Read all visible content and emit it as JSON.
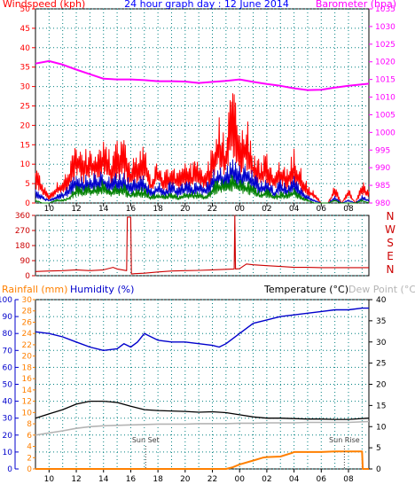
{
  "colors": {
    "wind_speed": "#ff0000",
    "wind_avg": "#0000cc",
    "wind_low": "#008000",
    "barometer": "#ff00ff",
    "wind_dir": "#cc0000",
    "humidity": "#0000cc",
    "temperature": "#000000",
    "dew_point": "#b4b4b4",
    "rainfall": "#ff8000",
    "left_axis": "#0000cc",
    "grid": "#008080",
    "title": "#0000ff"
  },
  "chart_data": [
    {
      "type": "line",
      "title": "24 hour graph day : 12 June 2014",
      "ylabel_left": "Windspeed (kph)",
      "ylabel_right": "Barometer (hpa)",
      "x_tick_labels": [
        "10",
        "12",
        "14",
        "16",
        "18",
        "20",
        "22",
        "00",
        "02",
        "04",
        "06",
        "08"
      ],
      "ylim_left": [
        0,
        50
      ],
      "yticks_left": [
        0,
        5,
        10,
        15,
        20,
        25,
        30,
        35,
        40,
        45,
        50
      ],
      "ylim_right": [
        980,
        1035
      ],
      "yticks_right": [
        980,
        985,
        990,
        995,
        1000,
        1005,
        1010,
        1015,
        1020,
        1025,
        1030,
        1035
      ],
      "grid": true,
      "series": [
        {
          "name": "Barometer",
          "axis": "right",
          "x": [
            9.0,
            10.0,
            11.0,
            12.0,
            13.0,
            14.0,
            15.0,
            16.0,
            17.0,
            18.0,
            19.0,
            20.0,
            21.0,
            22.0,
            23.0,
            24.0,
            25.0,
            26.0,
            27.0,
            28.0,
            29.0,
            30.0,
            31.0,
            32.0,
            33.5
          ],
          "values": [
            1019.5,
            1020.2,
            1019.2,
            1017.8,
            1016.5,
            1015.2,
            1015.0,
            1015.0,
            1014.8,
            1014.5,
            1014.5,
            1014.4,
            1014.0,
            1014.3,
            1014.6,
            1015.0,
            1014.3,
            1013.7,
            1013.2,
            1012.5,
            1012.0,
            1012.1,
            1012.7,
            1013.2,
            1013.8
          ]
        },
        {
          "name": "Gust",
          "axis": "left",
          "x": [
            9.0,
            9.5,
            10.0,
            10.5,
            11.0,
            11.5,
            12.0,
            12.5,
            13.0,
            13.5,
            14.0,
            14.5,
            15.0,
            15.5,
            16.0,
            16.5,
            17.0,
            17.5,
            18.0,
            18.5,
            19.0,
            19.5,
            20.0,
            20.5,
            21.0,
            21.5,
            22.0,
            22.5,
            23.0,
            23.5,
            24.0,
            24.5,
            25.0,
            25.5,
            26.0,
            26.5,
            27.0,
            27.5,
            28.0,
            28.5,
            29.0,
            29.5,
            30.0,
            30.5,
            31.0,
            31.5,
            32.0,
            32.5,
            33.0,
            33.5
          ],
          "values": [
            10,
            6,
            2,
            5,
            7,
            10,
            18,
            13,
            16,
            15,
            18,
            13,
            16,
            17,
            11,
            14,
            15,
            7,
            12,
            8,
            11,
            8,
            12,
            10,
            12,
            9,
            15,
            22,
            17,
            33,
            18,
            23,
            14,
            11,
            14,
            8,
            12,
            9,
            14,
            9,
            5,
            3,
            0,
            0,
            5,
            0,
            4,
            0,
            6,
            3
          ]
        },
        {
          "name": "Wind Avg",
          "axis": "left",
          "x": [
            9.0,
            9.5,
            10.0,
            10.5,
            11.0,
            11.5,
            12.0,
            12.5,
            13.0,
            13.5,
            14.0,
            14.5,
            15.0,
            15.5,
            16.0,
            16.5,
            17.0,
            17.5,
            18.0,
            18.5,
            19.0,
            19.5,
            20.0,
            20.5,
            21.0,
            21.5,
            22.0,
            22.5,
            23.0,
            23.5,
            24.0,
            24.5,
            25.0,
            25.5,
            26.0,
            26.5,
            27.0,
            27.5,
            28.0,
            28.5,
            29.0,
            29.5,
            30.0,
            30.5,
            31.0,
            31.5,
            32.0,
            32.5,
            33.0,
            33.5
          ],
          "values": [
            4,
            2,
            1,
            2,
            3,
            5,
            8,
            7,
            8,
            8,
            9,
            7,
            8,
            8,
            6,
            7,
            7,
            4,
            6,
            4,
            6,
            4,
            6,
            5,
            6,
            5,
            8,
            11,
            9,
            13,
            10,
            11,
            8,
            6,
            7,
            4,
            6,
            5,
            7,
            4,
            2,
            1,
            0,
            0,
            2,
            0,
            1,
            0,
            2,
            1
          ]
        },
        {
          "name": "Wind Low",
          "axis": "left",
          "x": [
            9.0,
            9.5,
            10.0,
            10.5,
            11.0,
            11.5,
            12.0,
            12.5,
            13.0,
            13.5,
            14.0,
            14.5,
            15.0,
            15.5,
            16.0,
            16.5,
            17.0,
            17.5,
            18.0,
            18.5,
            19.0,
            19.5,
            20.0,
            20.5,
            21.0,
            21.5,
            22.0,
            22.5,
            23.0,
            23.5,
            24.0,
            24.5,
            25.0,
            25.5,
            26.0,
            26.5,
            27.0,
            27.5,
            28.0,
            28.5,
            29.0,
            29.5,
            30.0,
            30.5,
            31.0,
            31.5,
            32.0,
            32.5,
            33.0,
            33.5
          ],
          "values": [
            1,
            0,
            0,
            1,
            1,
            2,
            5,
            4,
            5,
            5,
            6,
            4,
            5,
            5,
            3,
            4,
            4,
            2,
            3,
            2,
            3,
            2,
            3,
            3,
            3,
            2,
            5,
            7,
            6,
            8,
            6,
            6,
            5,
            3,
            4,
            2,
            3,
            3,
            4,
            2,
            1,
            0,
            0,
            0,
            1,
            0,
            0,
            0,
            1,
            0
          ]
        }
      ]
    },
    {
      "type": "line",
      "ylabel_right": [
        "N",
        "W",
        "S",
        "E",
        "N"
      ],
      "ylim": [
        0,
        360
      ],
      "yticks": [
        0,
        90,
        180,
        270,
        360
      ],
      "grid": true,
      "series": [
        {
          "name": "Wind Direction",
          "x": [
            9.0,
            10.0,
            11.0,
            12.0,
            13.0,
            14.0,
            14.7,
            15.0,
            15.7,
            15.75,
            16.0,
            16.05,
            16.3,
            17.0,
            18.0,
            19.0,
            20.0,
            21.0,
            22.0,
            23.0,
            23.6,
            23.65,
            23.7,
            24.0,
            24.5,
            25.0,
            26.0,
            27.0,
            28.0,
            29.0,
            30.0,
            31.0,
            32.0,
            33.5
          ],
          "values": [
            25,
            28,
            30,
            35,
            30,
            35,
            50,
            40,
            30,
            350,
            350,
            10,
            12,
            15,
            22,
            28,
            30,
            32,
            35,
            38,
            40,
            360,
            40,
            42,
            70,
            65,
            60,
            55,
            50,
            50,
            48,
            48,
            48,
            48
          ]
        }
      ]
    },
    {
      "type": "line",
      "ylabel_left": "Rainfall (mm)",
      "ylabel_left2": "Humidity (%)",
      "ylabel_right": "Temperature (°C)",
      "ylabel_right2": "Dew Point (°C)",
      "x_tick_labels": [
        "10",
        "12",
        "14",
        "16",
        "18",
        "20",
        "22",
        "00",
        "02",
        "04",
        "06",
        "08"
      ],
      "ylim_humidity": [
        0,
        100
      ],
      "yticks_humidity": [
        0,
        10,
        20,
        30,
        40,
        50,
        60,
        70,
        80,
        90,
        100
      ],
      "ylim_rain": [
        0,
        30
      ],
      "yticks_rain": [
        0,
        2,
        4,
        6,
        8,
        10,
        12,
        14,
        16,
        18,
        20,
        22,
        24,
        26,
        28,
        30
      ],
      "ylim_temp": [
        0,
        40
      ],
      "yticks_temp": [
        0,
        5,
        10,
        15,
        20,
        25,
        30,
        35,
        40
      ],
      "grid": true,
      "annotations": [
        {
          "text": "Sun Set",
          "x": 17.1
        },
        {
          "text": "Sun Rise",
          "x": 31.7
        }
      ],
      "series": [
        {
          "name": "Humidity",
          "axis": "humidity",
          "x": [
            9.0,
            10.0,
            11.0,
            12.0,
            13.0,
            14.0,
            15.0,
            15.5,
            16.0,
            16.5,
            17.0,
            18.0,
            19.0,
            20.0,
            21.0,
            22.0,
            22.5,
            23.0,
            24.0,
            25.0,
            26.0,
            27.0,
            28.0,
            29.0,
            30.0,
            31.0,
            32.0,
            33.0,
            33.5
          ],
          "values": [
            81,
            80,
            78,
            75,
            72,
            70,
            71,
            74,
            72,
            75,
            80,
            76,
            75,
            75,
            74,
            73,
            72,
            74,
            80,
            86,
            88,
            90,
            91,
            92,
            93,
            94,
            94,
            95,
            95
          ]
        },
        {
          "name": "Temperature",
          "axis": "temp",
          "x": [
            9.0,
            10.0,
            11.0,
            12.0,
            13.0,
            14.0,
            15.0,
            16.0,
            17.0,
            18.0,
            19.0,
            20.0,
            21.0,
            22.0,
            23.0,
            24.0,
            25.0,
            26.0,
            27.0,
            28.0,
            29.0,
            30.0,
            31.0,
            32.0,
            33.5
          ],
          "values": [
            12.0,
            13.0,
            14.0,
            15.3,
            16.0,
            16.0,
            15.7,
            14.8,
            14.0,
            13.8,
            13.7,
            13.6,
            13.4,
            13.5,
            13.3,
            12.8,
            12.3,
            12.0,
            12.0,
            11.9,
            11.8,
            11.8,
            11.7,
            11.7,
            12.0
          ]
        },
        {
          "name": "Dew Point",
          "axis": "temp",
          "x": [
            9.0,
            10.0,
            11.0,
            12.0,
            13.0,
            14.0,
            15.0,
            16.0,
            17.0,
            18.0,
            19.0,
            20.0,
            21.0,
            22.0,
            23.0,
            24.0,
            25.0,
            26.0,
            27.0,
            28.0,
            29.0,
            30.0,
            31.0,
            32.0,
            33.5
          ],
          "values": [
            8.0,
            8.5,
            9.0,
            9.6,
            10.0,
            10.2,
            10.3,
            10.4,
            10.5,
            10.6,
            10.6,
            10.6,
            10.7,
            10.7,
            10.7,
            10.8,
            10.8,
            10.9,
            10.9,
            10.9,
            11.0,
            11.0,
            11.0,
            11.0,
            11.2
          ]
        },
        {
          "name": "Rainfall",
          "axis": "rain",
          "x": [
            9.0,
            22.0,
            23.0,
            23.5,
            24.0,
            25.0,
            25.7,
            26.0,
            27.0,
            27.8,
            28.0,
            30.0,
            31.0,
            32.0,
            33.0,
            33.05,
            33.5
          ],
          "values": [
            0,
            0,
            0,
            0.3,
            0.8,
            1.5,
            2.0,
            2.1,
            2.2,
            2.8,
            3.0,
            3.0,
            3.1,
            3.1,
            3.1,
            0,
            0
          ]
        }
      ]
    }
  ]
}
